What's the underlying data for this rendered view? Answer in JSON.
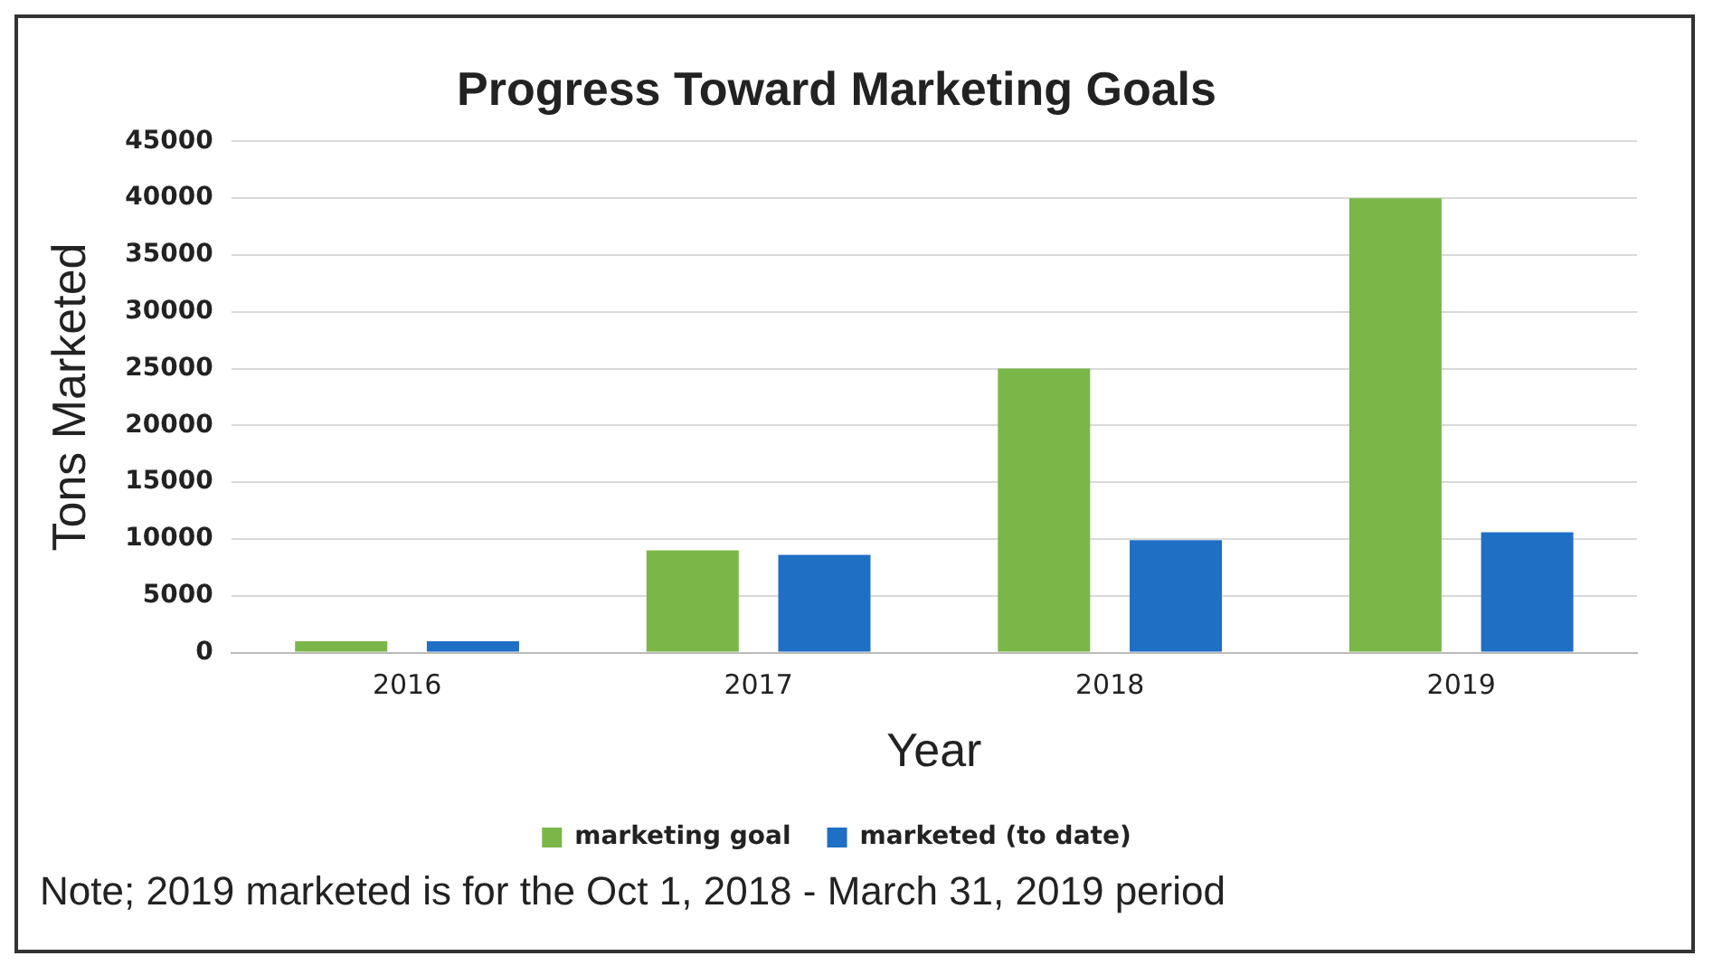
{
  "chart_data": {
    "type": "bar",
    "title": "Progress Toward Marketing Goals",
    "xlabel": "Year",
    "ylabel": "Tons Marketed",
    "categories": [
      "2016",
      "2017",
      "2018",
      "2019"
    ],
    "series": [
      {
        "name": "marketing goal",
        "color": "#7ab648",
        "values": [
          1000,
          9000,
          25000,
          40000
        ]
      },
      {
        "name": "marketed (to date)",
        "color": "#1f6fc4",
        "values": [
          1000,
          8600,
          9900,
          10600
        ]
      }
    ],
    "ylim": [
      0,
      45000
    ],
    "yticks": [
      0,
      5000,
      10000,
      15000,
      20000,
      25000,
      30000,
      35000,
      40000,
      45000
    ],
    "grid": "y",
    "legend": "bottom",
    "annotations": [
      "Note; 2019 marketed is for the Oct 1, 2018 - March 31, 2019 period"
    ]
  }
}
